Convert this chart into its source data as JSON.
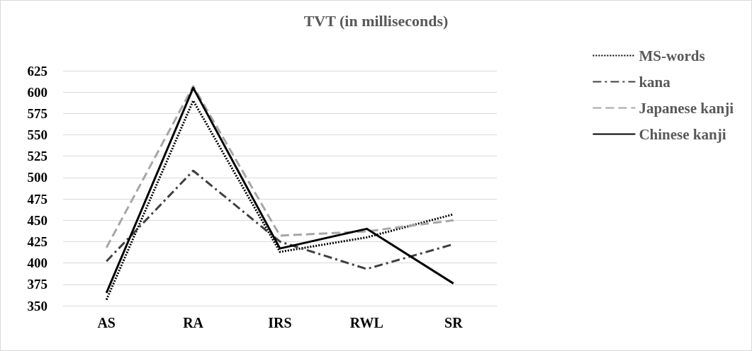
{
  "chart_data": {
    "type": "line",
    "title": "TVT (in milliseconds)",
    "categories": [
      "AS",
      "RA",
      "IRS",
      "RWL",
      "SR"
    ],
    "series": [
      {
        "name": "MS-words",
        "color": "#000000",
        "line_style": "dotted",
        "values": [
          357,
          590,
          413,
          430,
          457
        ]
      },
      {
        "name": "kana",
        "color": "#404040",
        "line_style": "dashdot",
        "values": [
          402,
          508,
          425,
          393,
          422
        ]
      },
      {
        "name": "Japanese kanji",
        "color": "#a6a6a6",
        "line_style": "dashed",
        "values": [
          418,
          607,
          432,
          437,
          450
        ]
      },
      {
        "name": "Chinese kanji",
        "color": "#000000",
        "line_style": "solid",
        "values": [
          365,
          605,
          417,
          440,
          376
        ]
      }
    ],
    "ylim": [
      350,
      625
    ],
    "yticks": [
      350,
      375,
      400,
      425,
      450,
      475,
      500,
      525,
      550,
      575,
      600,
      625
    ],
    "grid": "y",
    "legend": "right",
    "marker": "none"
  }
}
